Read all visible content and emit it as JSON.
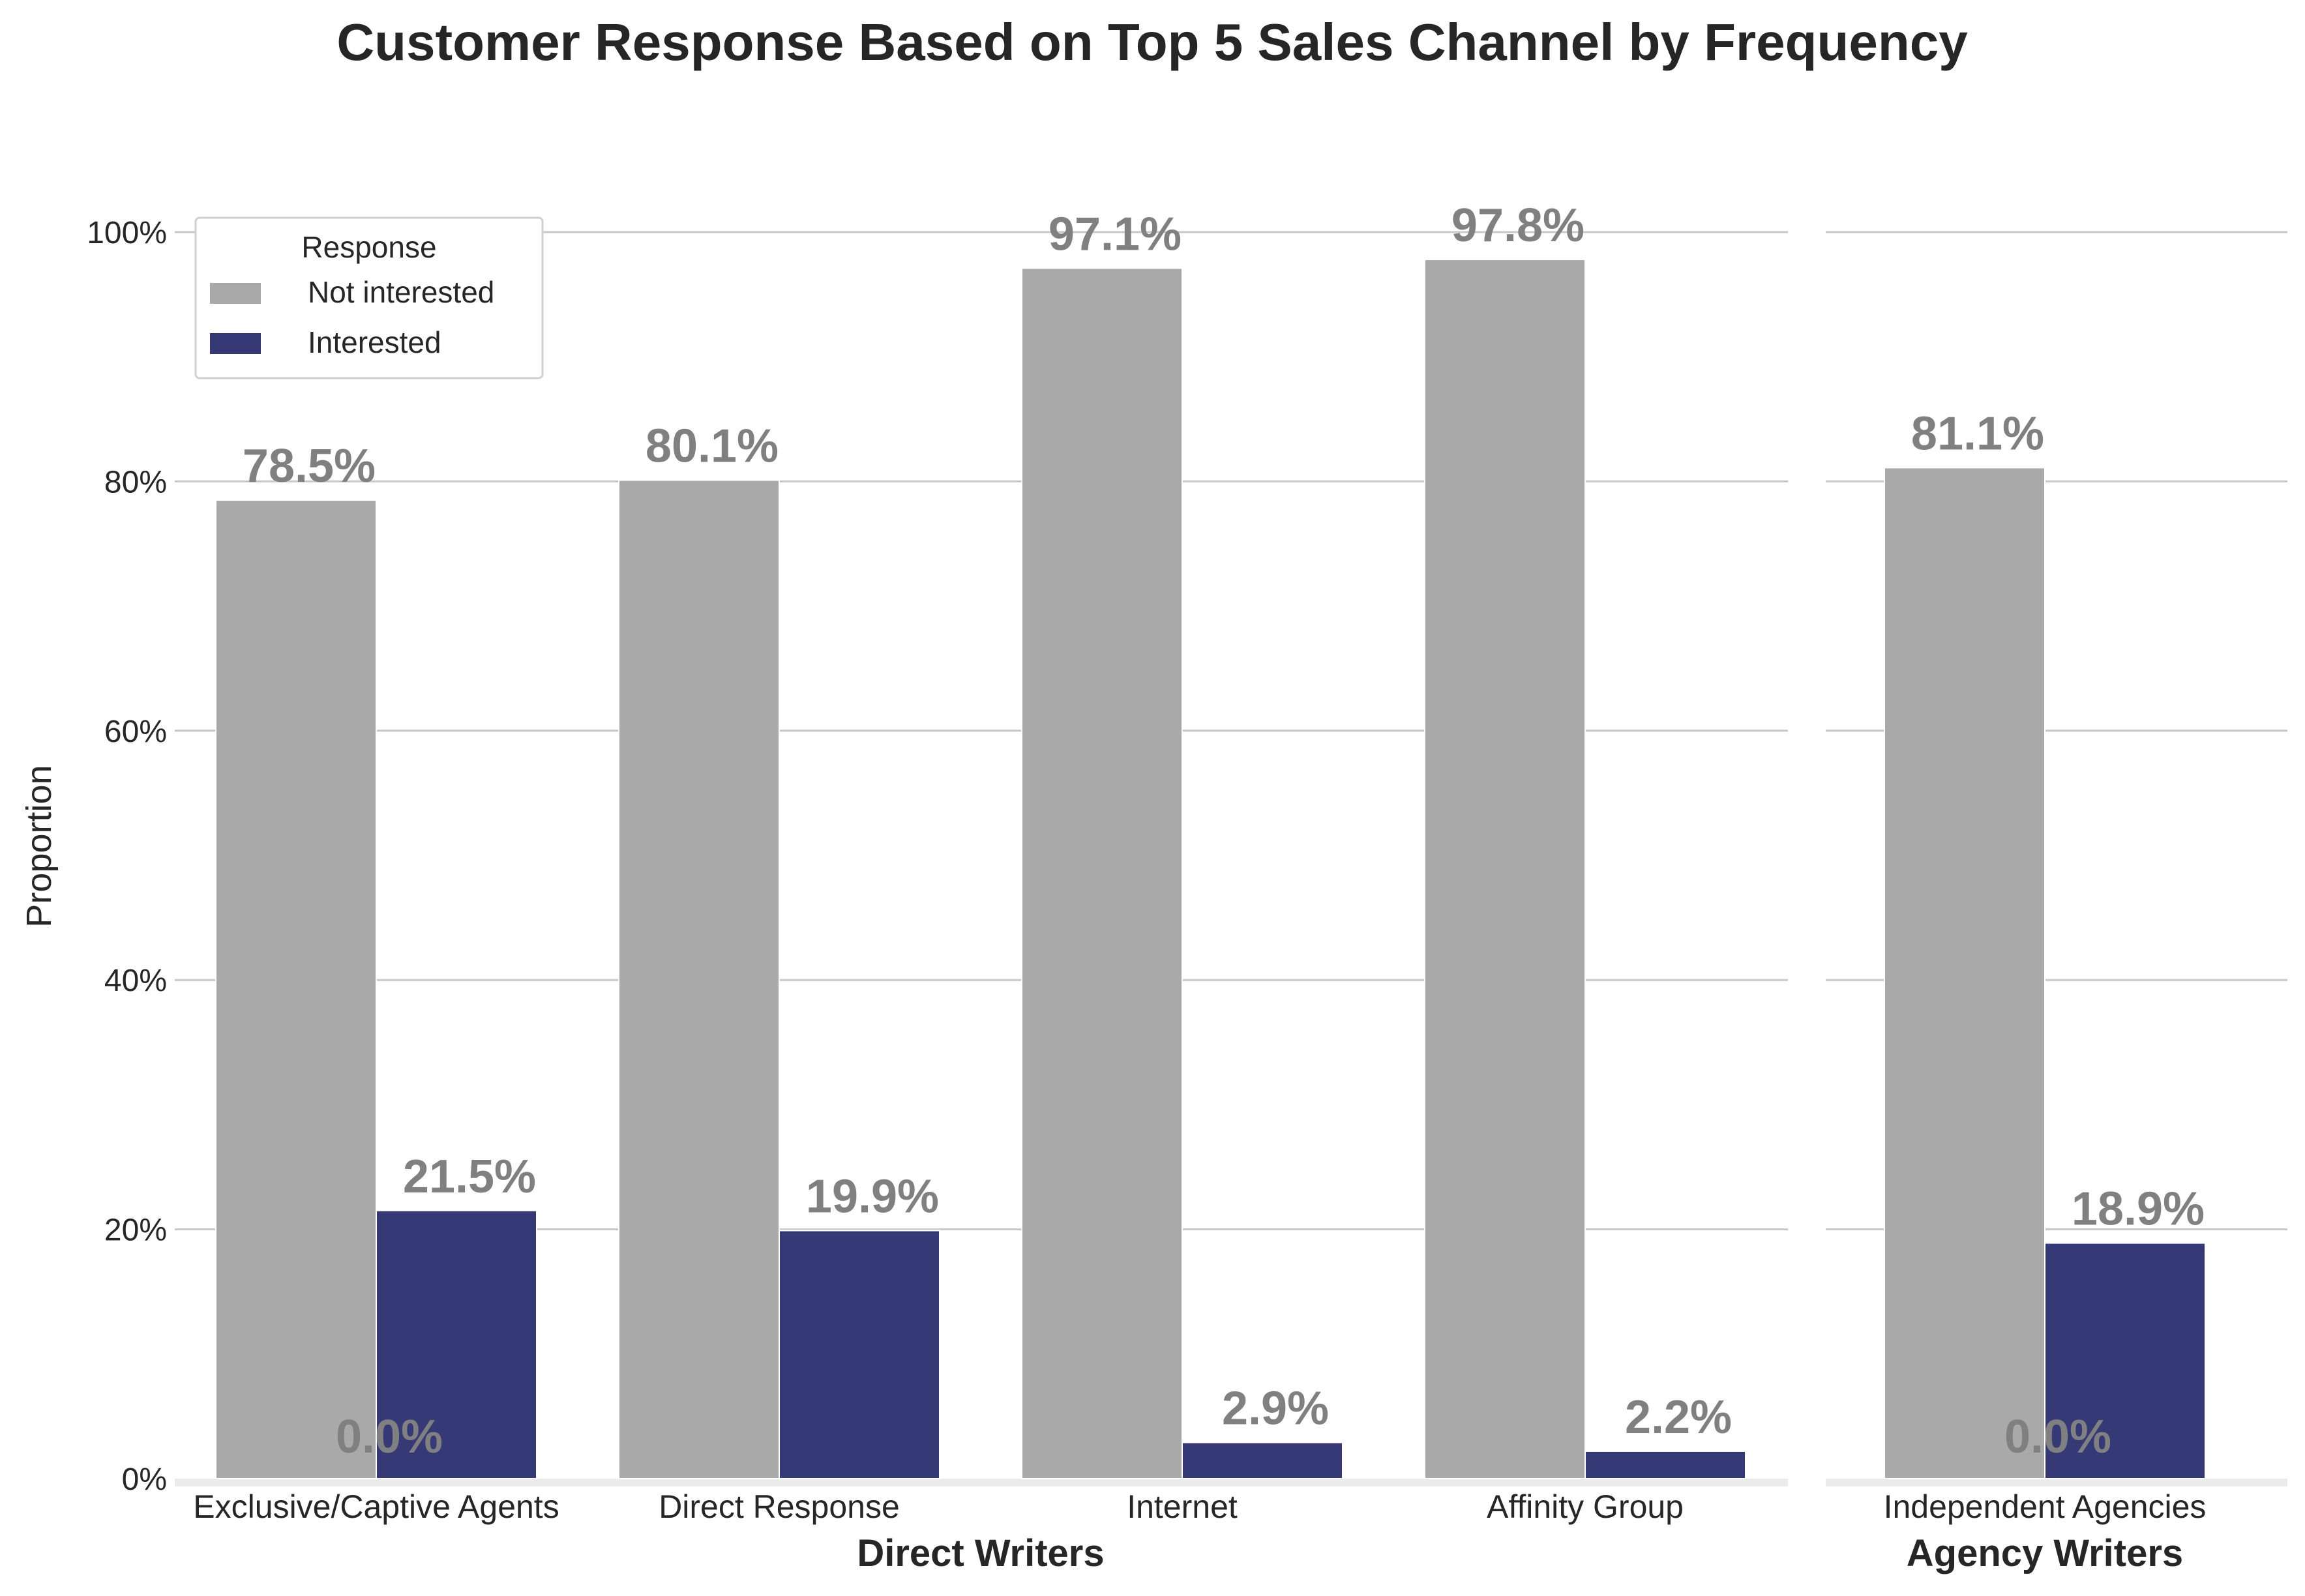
{
  "chart_data": {
    "type": "bar",
    "title": "Customer Response Based on Top 5 Sales Channel by Frequency",
    "ylabel": "Proportion",
    "ylim": [
      0,
      1.05
    ],
    "yticks": [
      "0%",
      "20%",
      "40%",
      "60%",
      "80%",
      "100%"
    ],
    "ytick_values": [
      0,
      0.2,
      0.4,
      0.6,
      0.8,
      1.0
    ],
    "grid": "horizontal",
    "legend": {
      "title": "Response",
      "placement": "top-left",
      "entries": [
        "Not interested",
        "Interested"
      ]
    },
    "colors": {
      "not_interested": "#a9a9a9",
      "interested": "#353a77",
      "label": "#808080",
      "grid": "#c8c8c8",
      "text": "#262626"
    },
    "panels": [
      {
        "xlabel": "Direct Writers",
        "categories": [
          "Exclusive/Captive Agents",
          "Direct Response",
          "Internet",
          "Affinity Group"
        ],
        "series": [
          {
            "name": "Not interested",
            "values": [
              0.785,
              0.801,
              0.971,
              0.978
            ],
            "labels": [
              "78.5%",
              "80.1%",
              "97.1%",
              "97.8%"
            ]
          },
          {
            "name": "Interested",
            "values": [
              0.215,
              0.199,
              0.029,
              0.022
            ],
            "labels": [
              "21.5%",
              "19.9%",
              "2.9%",
              "2.2%"
            ]
          }
        ],
        "extra_labels": [
          {
            "text": "0.0%",
            "category": 0
          }
        ]
      },
      {
        "xlabel": "Agency Writers",
        "categories": [
          "Independent Agencies"
        ],
        "series": [
          {
            "name": "Not interested",
            "values": [
              0.811
            ],
            "labels": [
              "81.1%"
            ]
          },
          {
            "name": "Interested",
            "values": [
              0.189
            ],
            "labels": [
              "18.9%"
            ]
          }
        ],
        "extra_labels": [
          {
            "text": "0.0%",
            "category": 0
          }
        ]
      }
    ]
  }
}
